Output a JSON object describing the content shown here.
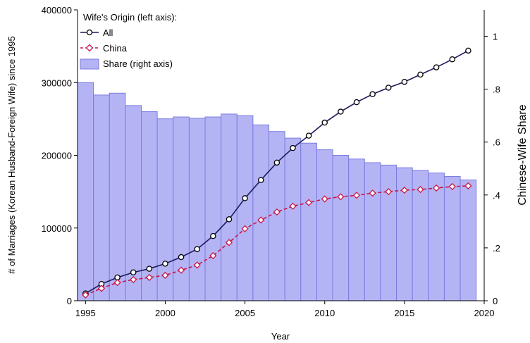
{
  "chart_data": {
    "type": "bar+line",
    "x": [
      1995,
      1996,
      1997,
      1998,
      1999,
      2000,
      2001,
      2002,
      2003,
      2004,
      2005,
      2006,
      2007,
      2008,
      2009,
      2010,
      2011,
      2012,
      2013,
      2014,
      2015,
      2016,
      2017,
      2018,
      2019
    ],
    "xlabel": "Year",
    "ylabel_left": "# of Marriages (Korean Husband-Foreign Wife) since 1995",
    "ylabel_right": "Chinese-Wife Share",
    "xlim": [
      1994.5,
      2020
    ],
    "xticks": [
      1995,
      2000,
      2005,
      2010,
      2015,
      2020
    ],
    "ylim_left": [
      0,
      400000
    ],
    "yticks_left": [
      0,
      100000,
      200000,
      300000,
      400000
    ],
    "ytick_labels_left": [
      "0",
      "100000",
      "200000",
      "300000",
      "400000"
    ],
    "ylim_right": [
      0,
      1.1
    ],
    "yticks_right": [
      0,
      0.2,
      0.4,
      0.6,
      0.8,
      1
    ],
    "ytick_labels_right": [
      "0",
      ".2",
      ".4",
      ".6",
      ".8",
      "1"
    ],
    "grid": false,
    "legend": {
      "title": "Wife's Origin (left axis):",
      "placement": "top-left",
      "entries": [
        "All",
        "China",
        "Share (right axis)"
      ]
    },
    "series": [
      {
        "name": "All",
        "type": "line",
        "axis": "left",
        "color": "#1a1a5e",
        "marker": "circle",
        "values": [
          10000,
          23000,
          32000,
          39000,
          44000,
          51000,
          60000,
          71000,
          89000,
          112000,
          141000,
          166000,
          190000,
          210000,
          227000,
          245000,
          260000,
          273000,
          284000,
          293000,
          301000,
          311000,
          321000,
          332000,
          344000
        ]
      },
      {
        "name": "China",
        "type": "line",
        "axis": "left",
        "color": "#c8164b",
        "dashed": true,
        "marker": "diamond",
        "values": [
          8000,
          17000,
          25000,
          29000,
          32000,
          35000,
          42000,
          49000,
          62000,
          80000,
          99000,
          111000,
          122000,
          130000,
          135000,
          140000,
          143000,
          145000,
          148000,
          150000,
          152000,
          153000,
          155000,
          157000,
          158000
        ]
      },
      {
        "name": "Share (right axis)",
        "type": "bar",
        "axis": "right",
        "color": "#b4b4f5",
        "values": [
          0.825,
          0.778,
          0.785,
          0.738,
          0.715,
          0.688,
          0.695,
          0.69,
          0.695,
          0.706,
          0.7,
          0.665,
          0.64,
          0.615,
          0.596,
          0.571,
          0.55,
          0.536,
          0.522,
          0.513,
          0.503,
          0.493,
          0.483,
          0.47,
          0.457
        ]
      }
    ]
  }
}
